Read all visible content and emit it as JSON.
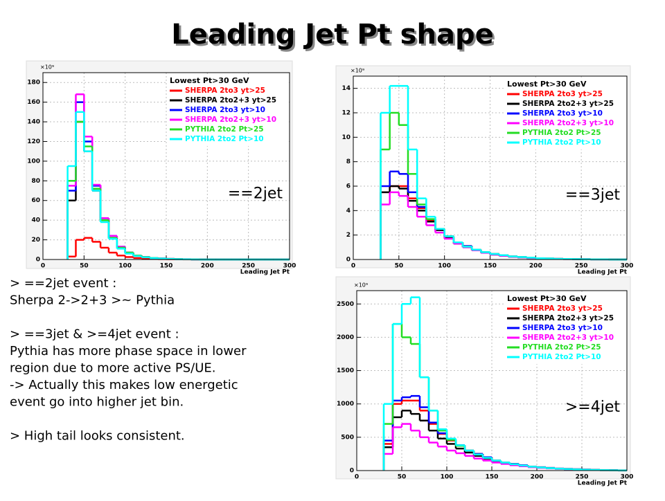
{
  "slide": {
    "title": "Leading Jet Pt shape",
    "notes": [
      [
        "> ==2jet event :",
        "Sherpa 2->2+3 >~ Pythia"
      ],
      [
        "> ==3jet & >=4jet event :",
        "Pythia has more phase space in lower",
        "region due to more active PS/UE.",
        "-> Actually this makes low energetic",
        "event go into higher jet bin."
      ],
      [
        "> High tail looks consistent."
      ]
    ]
  },
  "chart_data": [
    {
      "type": "histogram",
      "annotation": "==2jet",
      "y_exponent": "×10⁹",
      "xlabel": "Leading Jet Pt",
      "legend_title": "Lowest Pt>30 GeV",
      "legend": "upper right",
      "grid": true,
      "xlim": [
        0,
        300
      ],
      "xticks": [
        0,
        50,
        100,
        150,
        200,
        250,
        300
      ],
      "ylim": [
        0,
        190
      ],
      "yticks": [
        0,
        20,
        40,
        60,
        80,
        100,
        120,
        140,
        160,
        180
      ],
      "bins": [
        30,
        40,
        50,
        60,
        70,
        80,
        90,
        100,
        110,
        120,
        130,
        140,
        150,
        160,
        170,
        180,
        190,
        200,
        210,
        220,
        230,
        240,
        250,
        260,
        270,
        280,
        290,
        300
      ],
      "series": [
        {
          "name": "SHERPA 2to3 yt>25",
          "color": "#ff0000",
          "values": [
            3,
            20,
            22,
            18,
            12,
            7,
            4,
            2.5,
            1.5,
            1,
            0.6,
            0.4,
            0.3,
            0.2,
            0.1,
            0,
            0,
            0,
            0,
            0,
            0,
            0,
            0,
            0,
            0,
            0,
            0
          ]
        },
        {
          "name": "SHERPA 2to2+3 yt>25",
          "color": "#000000",
          "values": [
            60,
            140,
            110,
            70,
            40,
            22,
            12,
            7,
            4,
            2.5,
            1.5,
            1,
            0.6,
            0.4,
            0.2,
            0.1,
            0,
            0,
            0,
            0,
            0,
            0,
            0,
            0,
            0,
            0,
            0
          ]
        },
        {
          "name": "SHERPA 2to3 yt>10",
          "color": "#0000ff",
          "values": [
            70,
            160,
            120,
            75,
            42,
            24,
            13,
            7,
            4,
            2.5,
            1.5,
            1,
            0.6,
            0.4,
            0.2,
            0.1,
            0,
            0,
            0,
            0,
            0,
            0,
            0,
            0,
            0,
            0,
            0
          ]
        },
        {
          "name": "SHERPA 2to2+3 yt>10",
          "color": "#ff00ff",
          "values": [
            75,
            168,
            125,
            76,
            42,
            24,
            13,
            7,
            4,
            2.5,
            1.5,
            1,
            0.6,
            0.4,
            0.2,
            0.1,
            0,
            0,
            0,
            0,
            0,
            0,
            0,
            0,
            0,
            0,
            0
          ]
        },
        {
          "name": "PYTHIA 2to2 Pt>25",
          "color": "#22dd22",
          "values": [
            80,
            140,
            115,
            72,
            40,
            22,
            12,
            7,
            4,
            2.5,
            1.5,
            1,
            0.6,
            0.4,
            0.2,
            0.1,
            0,
            0,
            0,
            0,
            0,
            0,
            0,
            0,
            0,
            0,
            0
          ]
        },
        {
          "name": "PYTHIA 2to2 Pt>10",
          "color": "#00ffff",
          "values": [
            95,
            150,
            110,
            70,
            38,
            21,
            11,
            6,
            3.5,
            2.2,
            1.4,
            0.9,
            0.5,
            0.3,
            0.2,
            0.1,
            0,
            0,
            0,
            0,
            0,
            0,
            0,
            0,
            0,
            0,
            0
          ]
        }
      ]
    },
    {
      "type": "histogram",
      "annotation": "==3jet",
      "y_exponent": "×10⁹",
      "xlabel": "Leading Jet Pt",
      "legend_title": "Lowest Pt>30 GeV",
      "legend": "upper right",
      "grid": true,
      "xlim": [
        0,
        300
      ],
      "xticks": [
        0,
        50,
        100,
        150,
        200,
        250,
        300
      ],
      "ylim": [
        0,
        15
      ],
      "yticks": [
        0,
        2,
        4,
        6,
        8,
        10,
        12,
        14
      ],
      "bins": [
        30,
        40,
        50,
        60,
        70,
        80,
        90,
        100,
        110,
        120,
        130,
        140,
        150,
        160,
        170,
        180,
        190,
        200,
        210,
        220,
        230,
        240,
        250,
        260,
        270,
        280,
        290,
        300
      ],
      "series": [
        {
          "name": "SHERPA 2to3 yt>25",
          "color": "#ff0000",
          "values": [
            5.5,
            6,
            6,
            5,
            4.2,
            3.2,
            2.5,
            1.9,
            1.4,
            1.1,
            0.8,
            0.6,
            0.45,
            0.35,
            0.25,
            0.2,
            0.15,
            0.1,
            0.08,
            0.05,
            0.04,
            0.03,
            0.02,
            0.01,
            0.01,
            0,
            0
          ]
        },
        {
          "name": "SHERPA 2to2+3 yt>25",
          "color": "#000000",
          "values": [
            5.5,
            6,
            5.8,
            4.8,
            4,
            3.1,
            2.4,
            1.8,
            1.3,
            1,
            0.75,
            0.55,
            0.4,
            0.3,
            0.22,
            0.17,
            0.12,
            0.09,
            0.07,
            0.05,
            0.04,
            0.03,
            0.02,
            0.01,
            0.01,
            0,
            0
          ]
        },
        {
          "name": "SHERPA 2to3 yt>10",
          "color": "#0000ff",
          "values": [
            6,
            7.2,
            7,
            5.5,
            4.3,
            3.3,
            2.5,
            1.9,
            1.4,
            1.1,
            0.8,
            0.6,
            0.45,
            0.35,
            0.25,
            0.2,
            0.15,
            0.1,
            0.08,
            0.05,
            0.04,
            0.03,
            0.02,
            0.01,
            0.01,
            0,
            0
          ]
        },
        {
          "name": "SHERPA 2to2+3 yt>10",
          "color": "#ff00ff",
          "values": [
            4.5,
            5.5,
            5.2,
            4.3,
            3.5,
            2.8,
            2.2,
            1.7,
            1.3,
            1,
            0.75,
            0.55,
            0.4,
            0.3,
            0.22,
            0.17,
            0.12,
            0.09,
            0.07,
            0.05,
            0.04,
            0.03,
            0.02,
            0.01,
            0.01,
            0,
            0
          ]
        },
        {
          "name": "PYTHIA 2to2 Pt>25",
          "color": "#22dd22",
          "values": [
            9,
            12,
            11,
            7,
            4.5,
            3.3,
            2.5,
            1.9,
            1.4,
            1.05,
            0.8,
            0.6,
            0.45,
            0.35,
            0.25,
            0.2,
            0.15,
            0.1,
            0.08,
            0.05,
            0.04,
            0.03,
            0.02,
            0.01,
            0.01,
            0,
            0
          ]
        },
        {
          "name": "PYTHIA 2to2 Pt>10",
          "color": "#00ffff",
          "values": [
            12,
            14.2,
            14.2,
            9,
            5,
            3.5,
            2.5,
            1.9,
            1.4,
            1.05,
            0.8,
            0.6,
            0.45,
            0.35,
            0.25,
            0.2,
            0.15,
            0.1,
            0.08,
            0.05,
            0.04,
            0.03,
            0.02,
            0.01,
            0.01,
            0,
            0
          ]
        }
      ]
    },
    {
      "type": "histogram",
      "annotation": ">=4jet",
      "y_exponent": "×10⁹",
      "xlabel": "Leading Jet Pt",
      "legend_title": "Lowest Pt>30 GeV",
      "legend": "upper right",
      "grid": true,
      "xlim": [
        0,
        300
      ],
      "xticks": [
        0,
        50,
        100,
        150,
        200,
        250,
        300
      ],
      "ylim": [
        0,
        2700
      ],
      "yticks": [
        0,
        500,
        1000,
        1500,
        2000,
        2500
      ],
      "bins": [
        30,
        40,
        50,
        60,
        70,
        80,
        90,
        100,
        110,
        120,
        130,
        140,
        150,
        160,
        170,
        180,
        190,
        200,
        210,
        220,
        230,
        240,
        250,
        260,
        270,
        280,
        290,
        300
      ],
      "series": [
        {
          "name": "SHERPA 2to3 yt>25",
          "color": "#ff0000",
          "values": [
            400,
            1000,
            1050,
            1050,
            900,
            700,
            550,
            450,
            380,
            300,
            250,
            200,
            150,
            120,
            100,
            80,
            60,
            50,
            40,
            30,
            25,
            20,
            15,
            10,
            8,
            5,
            3
          ]
        },
        {
          "name": "SHERPA 2to2+3 yt>25",
          "color": "#000000",
          "values": [
            350,
            800,
            900,
            850,
            750,
            600,
            480,
            400,
            330,
            270,
            220,
            180,
            140,
            110,
            90,
            70,
            55,
            45,
            35,
            28,
            22,
            18,
            13,
            9,
            7,
            4,
            2
          ]
        },
        {
          "name": "SHERPA 2to3 yt>10",
          "color": "#0000ff",
          "values": [
            450,
            1050,
            1100,
            1120,
            950,
            720,
            560,
            460,
            380,
            300,
            250,
            200,
            150,
            120,
            100,
            80,
            60,
            50,
            40,
            30,
            25,
            20,
            15,
            10,
            8,
            5,
            3
          ]
        },
        {
          "name": "SHERPA 2to2+3 yt>10",
          "color": "#ff00ff",
          "values": [
            250,
            650,
            700,
            600,
            500,
            420,
            360,
            300,
            260,
            220,
            180,
            150,
            120,
            100,
            80,
            65,
            50,
            40,
            32,
            25,
            20,
            15,
            11,
            8,
            6,
            3,
            2
          ]
        },
        {
          "name": "PYTHIA 2to2 Pt>25",
          "color": "#22dd22",
          "values": [
            700,
            2200,
            2000,
            1900,
            1400,
            900,
            600,
            460,
            370,
            300,
            240,
            190,
            150,
            120,
            95,
            75,
            58,
            46,
            36,
            28,
            22,
            17,
            12,
            9,
            6,
            4,
            2
          ]
        },
        {
          "name": "PYTHIA 2to2 Pt>10",
          "color": "#00ffff",
          "values": [
            1000,
            2200,
            2500,
            2600,
            1400,
            900,
            620,
            480,
            380,
            300,
            240,
            190,
            150,
            120,
            95,
            75,
            58,
            46,
            36,
            28,
            22,
            17,
            12,
            9,
            6,
            4,
            2
          ]
        }
      ]
    }
  ]
}
